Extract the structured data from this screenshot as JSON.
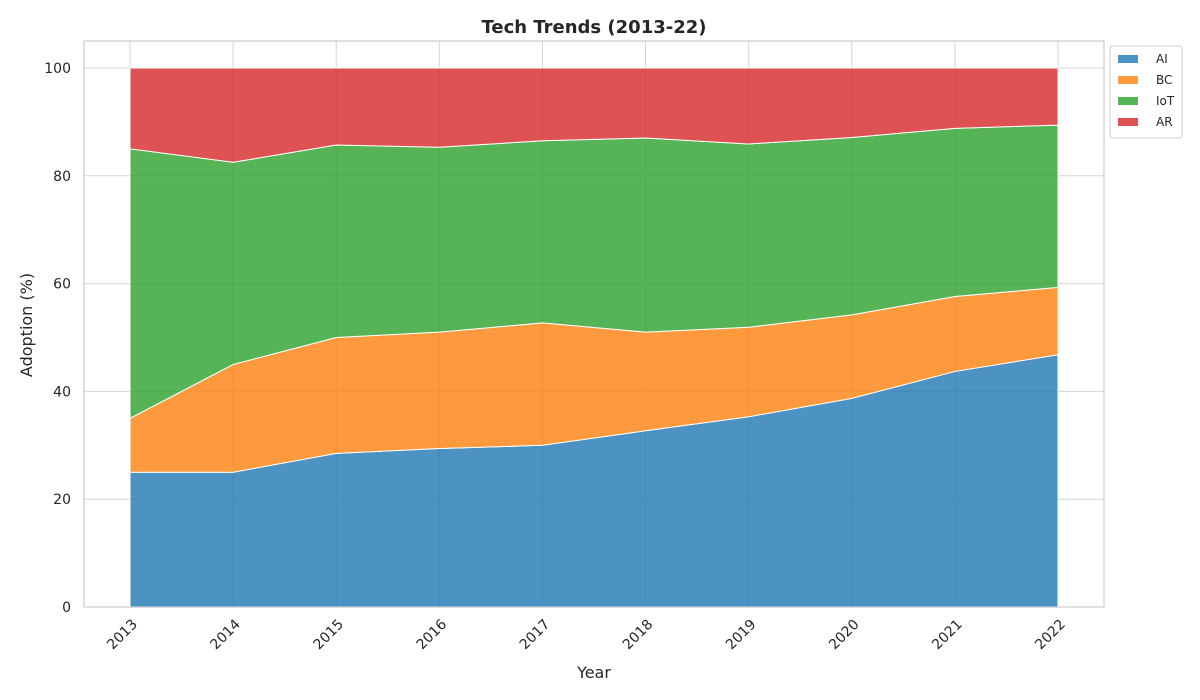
{
  "chart_data": {
    "type": "area",
    "stacked": true,
    "title": "Tech Trends (2013-22)",
    "xlabel": "Year",
    "ylabel": "Adoption (%)",
    "x": [
      "2013",
      "2014",
      "2015",
      "2016",
      "2017",
      "2018",
      "2019",
      "2020",
      "2021",
      "2022"
    ],
    "ylim": [
      0,
      105
    ],
    "yticks": [
      0,
      20,
      40,
      60,
      80,
      100
    ],
    "grid": true,
    "legend_position": "upper-right-outside",
    "series": [
      {
        "name": "AI",
        "color": "#1f77b4",
        "values": [
          25.0,
          25.0,
          28.5,
          29.4,
          30.0,
          32.7,
          35.3,
          38.7,
          43.7,
          46.8
        ]
      },
      {
        "name": "BC",
        "color": "#ff7f0e",
        "values": [
          10.0,
          20.0,
          21.5,
          21.6,
          22.7,
          18.3,
          16.6,
          15.5,
          13.9,
          12.5
        ]
      },
      {
        "name": "IoT",
        "color": "#2ca02c",
        "values": [
          50.0,
          37.5,
          35.7,
          34.3,
          33.8,
          36.0,
          34.0,
          32.9,
          31.2,
          30.1
        ]
      },
      {
        "name": "AR",
        "color": "#d62728",
        "values": [
          15.0,
          17.5,
          14.3,
          14.7,
          13.5,
          13.0,
          14.1,
          12.9,
          11.2,
          10.6
        ]
      }
    ]
  }
}
